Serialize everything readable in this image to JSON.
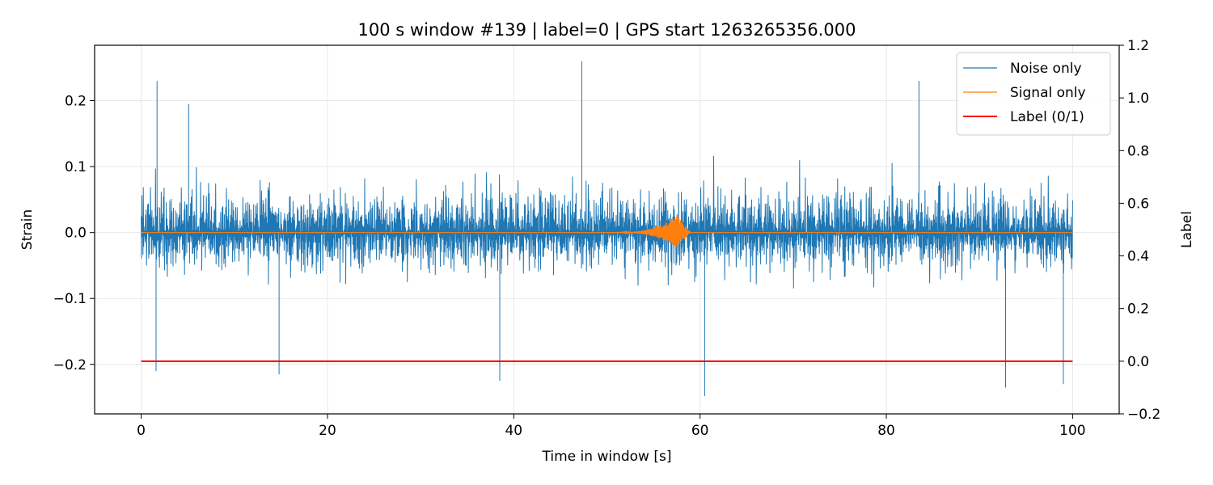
{
  "chart_data": {
    "type": "line",
    "title": "100 s window #139 | label=0 | GPS start 1263265356.000",
    "xlabel": "Time in window [s]",
    "ylabel": "Strain",
    "y2label": "Label",
    "xlim": [
      -5,
      105
    ],
    "ylim": [
      -0.275,
      0.284
    ],
    "y2lim": [
      -0.2,
      1.2
    ],
    "xticks": [
      0,
      20,
      40,
      60,
      80,
      100
    ],
    "xtick_labels": [
      "0",
      "20",
      "40",
      "60",
      "80",
      "100"
    ],
    "yticks": [
      -0.2,
      -0.1,
      0.0,
      0.1,
      0.2
    ],
    "ytick_labels": [
      "−0.2",
      "−0.1",
      "0.0",
      "0.1",
      "0.2"
    ],
    "y2ticks": [
      -0.2,
      0.0,
      0.2,
      0.4,
      0.6,
      0.8,
      1.0,
      1.2
    ],
    "y2tick_labels": [
      "−0.2",
      "0.0",
      "0.2",
      "0.4",
      "0.6",
      "0.8",
      "1.0",
      "1.2"
    ],
    "grid": true,
    "legend_position": "upper right",
    "series": [
      {
        "name": "Noise only",
        "axis": "left",
        "color": "#1f77b4",
        "x_range": [
          0,
          100
        ],
        "typical_envelope": [
          -0.1,
          0.12
        ],
        "peaks": [
          {
            "x": 1.7,
            "y": 0.23
          },
          {
            "x": 47.3,
            "y": 0.26
          },
          {
            "x": 83.5,
            "y": 0.23
          },
          {
            "x": 5.1,
            "y": 0.195
          },
          {
            "x": 60.5,
            "y": -0.248
          },
          {
            "x": 92.8,
            "y": -0.235
          },
          {
            "x": 99.0,
            "y": -0.23
          },
          {
            "x": 38.5,
            "y": -0.225
          },
          {
            "x": 14.8,
            "y": -0.215
          },
          {
            "x": 1.6,
            "y": -0.21
          }
        ]
      },
      {
        "name": "Signal only",
        "axis": "left",
        "color": "#ff7f0e",
        "x_range": [
          0,
          100
        ],
        "burst_start": 50,
        "burst_peak_x": 57.5,
        "burst_end": 59,
        "burst_peak": 0.026,
        "burst_trough": -0.021
      },
      {
        "name": "Label (0/1)",
        "axis": "right",
        "color": "#ff0000",
        "x": [
          0,
          100
        ],
        "values": [
          0,
          0
        ]
      }
    ]
  }
}
